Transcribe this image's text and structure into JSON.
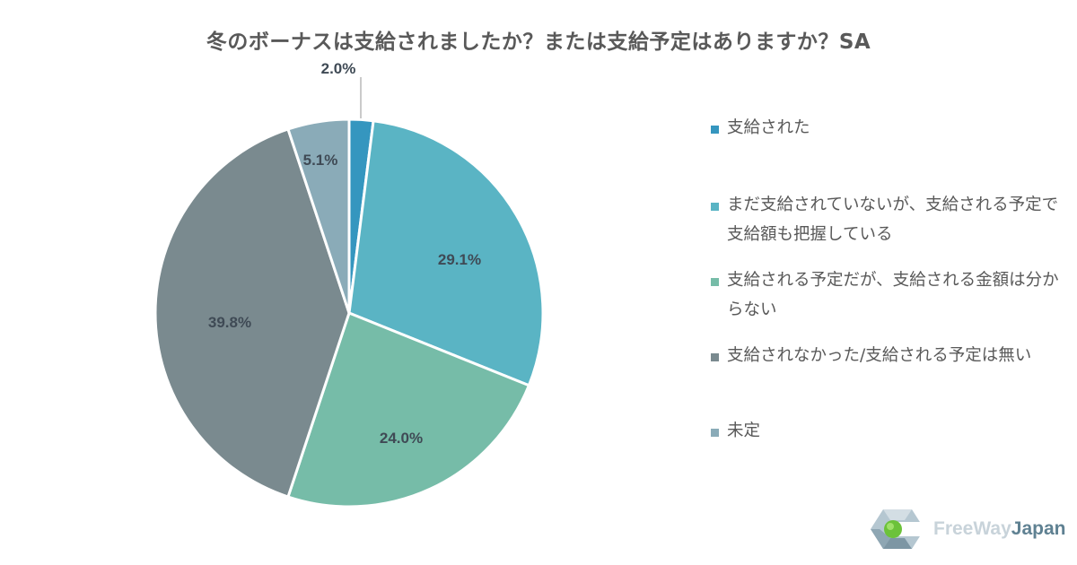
{
  "chart_data": {
    "type": "pie",
    "title": "冬のボーナスは支給されましたか？または支給予定はありますか？SA",
    "categories": [
      "支給された",
      "まだ支給されていないが、支給される予定で支給額も把握している",
      "支給される予定だが、支給される金額は分からない",
      "支給されなかった/支給される予定は無い",
      "未定"
    ],
    "values": [
      2.0,
      29.1,
      24.0,
      39.8,
      5.1
    ],
    "labels": [
      "2.0%",
      "29.1%",
      "24.0%",
      "39.8%",
      "5.1%"
    ],
    "colors": [
      "#3596bf",
      "#5ab4c4",
      "#76bca8",
      "#7a8a8f",
      "#8aabb8"
    ],
    "start_angle": "12 o'clock, clockwise",
    "legend_position": "right"
  },
  "title": "冬のボーナスは支給されましたか？または支給予定はありますか？SA",
  "legend": [
    {
      "label": "支給された",
      "color": "#3596bf"
    },
    {
      "label": "まだ支給されていないが、支給される予定で支給額も把握している",
      "color": "#5ab4c4"
    },
    {
      "label": "支給される予定だが、支給される金額は分からない",
      "color": "#76bca8"
    },
    {
      "label": "支給されなかった/支給される予定は無い",
      "color": "#7a8a8f"
    },
    {
      "label": "未定",
      "color": "#8aabb8"
    }
  ],
  "logo": {
    "part1": "FreeWay",
    "part2": "Japan"
  }
}
